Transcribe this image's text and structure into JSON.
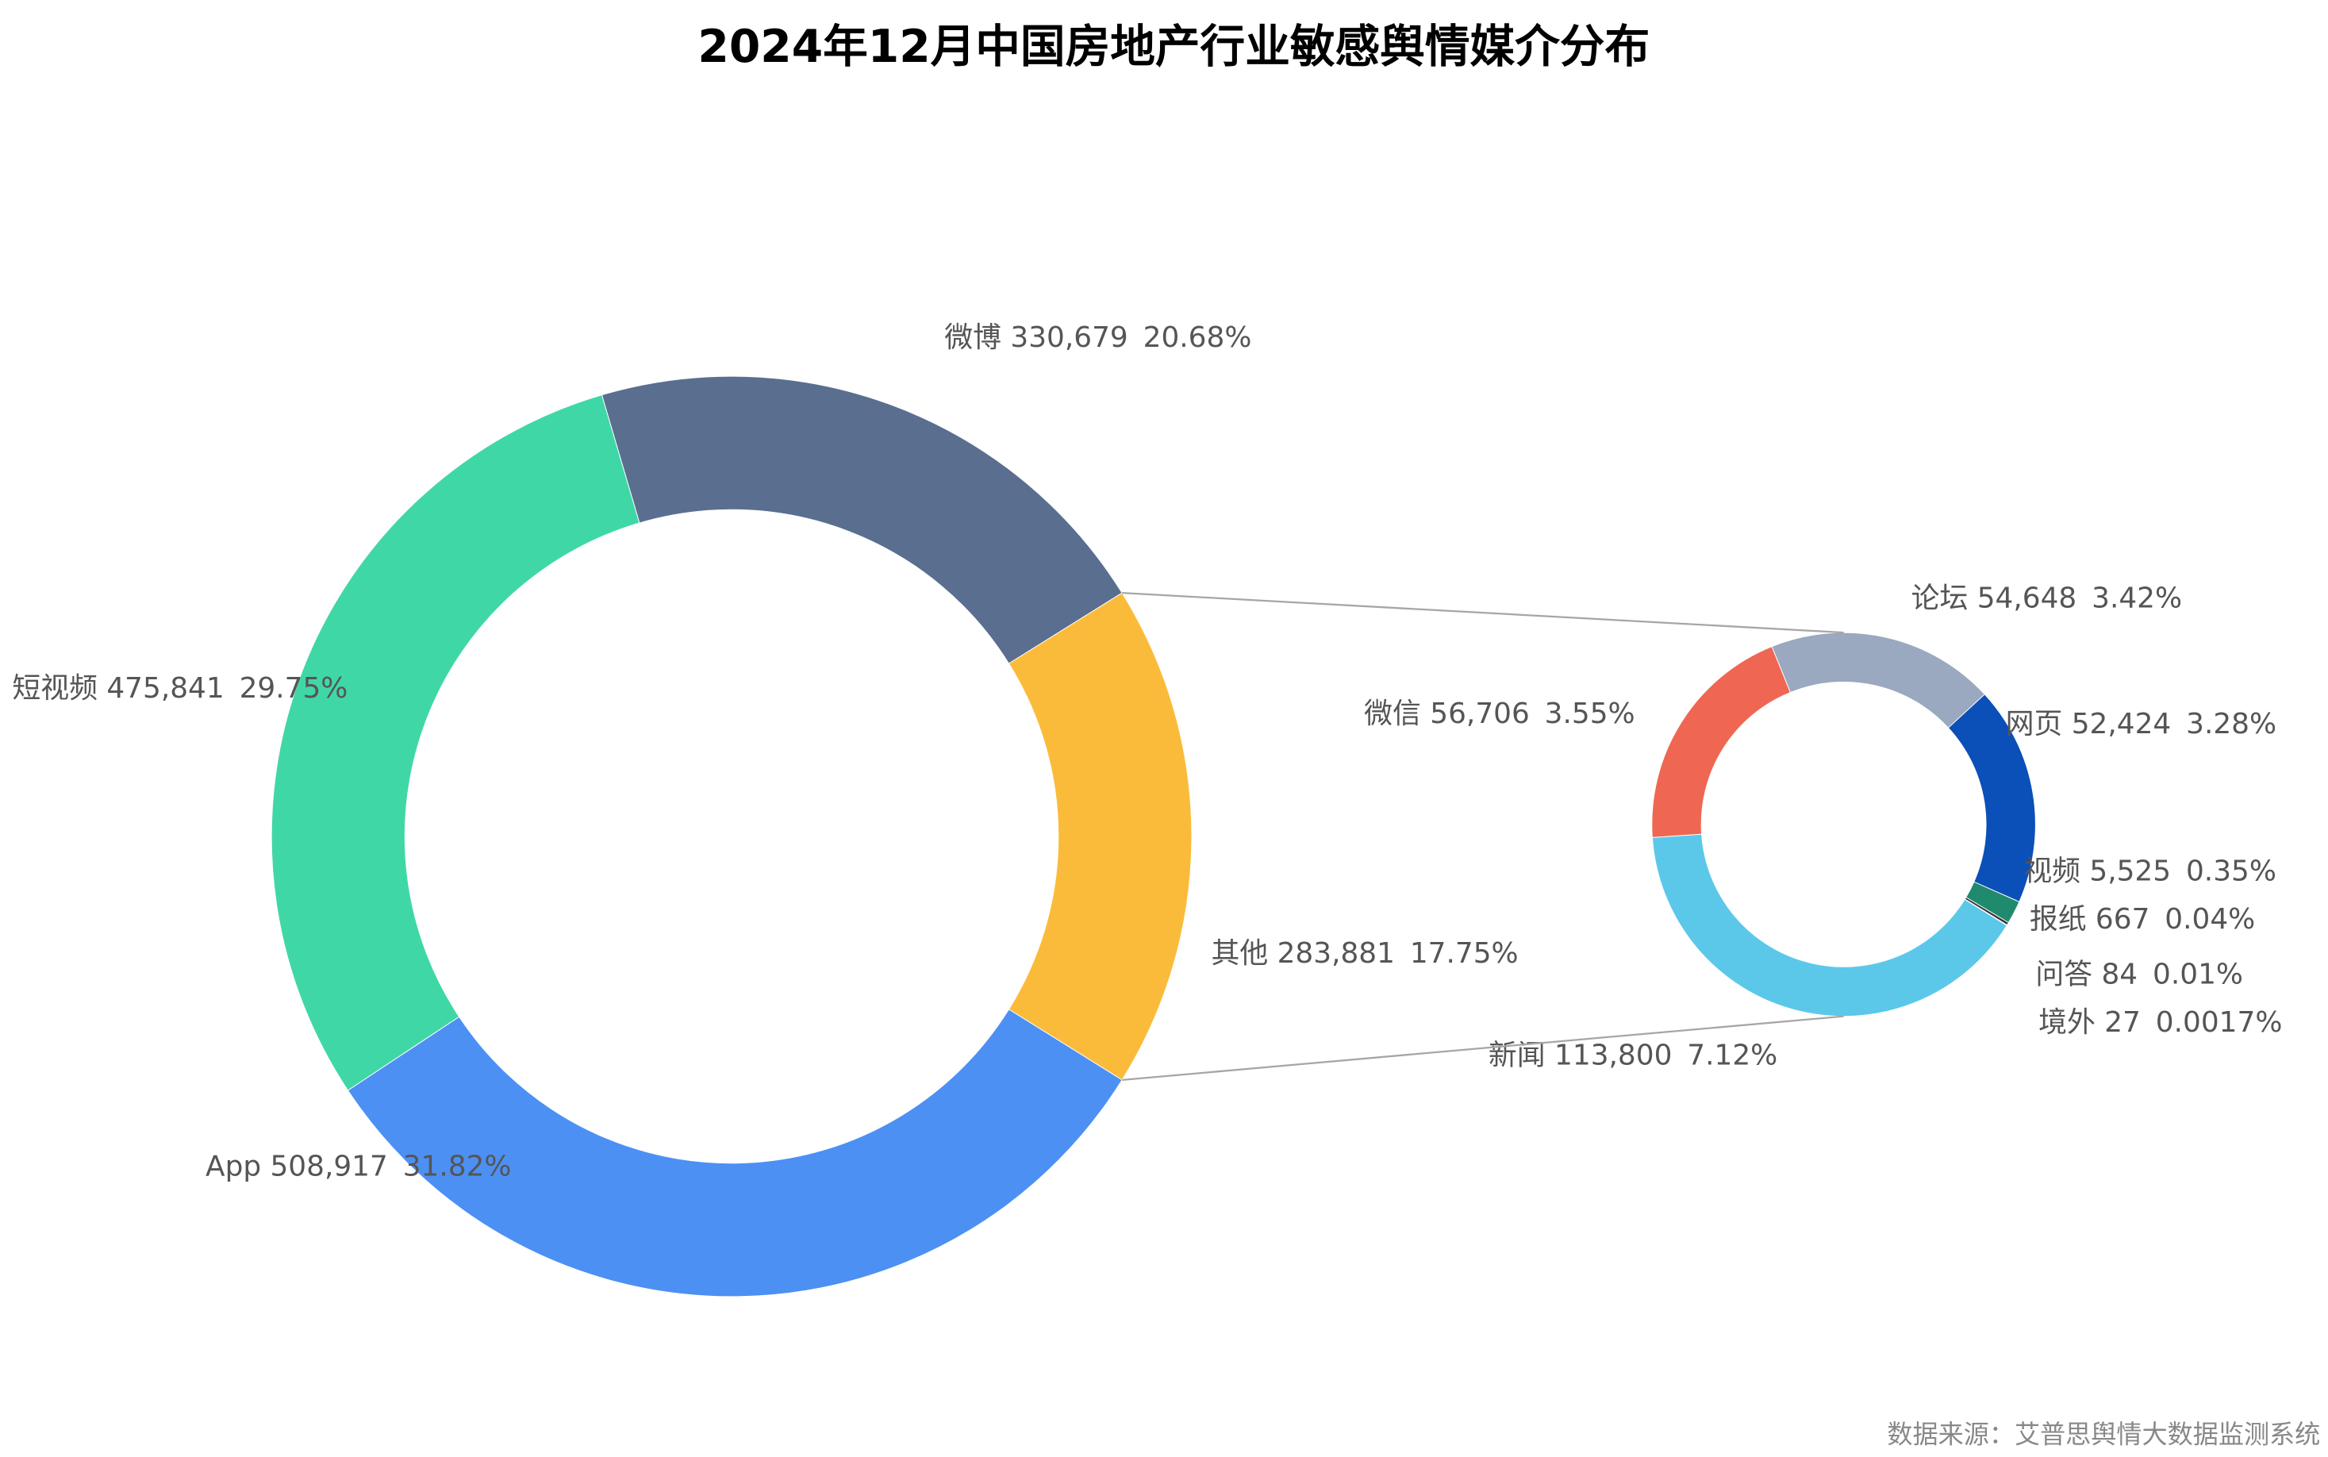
{
  "chart_data": [
    {
      "type": "pie",
      "title": "2024年12月中国房地产行业敏感舆情媒介分布",
      "categories": [
        "微博",
        "其他",
        "App",
        "短视频"
      ],
      "values": [
        330679,
        283881,
        508917,
        475841
      ],
      "value_labels": [
        "330,679",
        "283,881",
        "508,917",
        "475,841"
      ],
      "shares": [
        20.68,
        17.75,
        31.82,
        29.75
      ],
      "share_labels": [
        "20.68%",
        "17.75%",
        "31.82%",
        "29.75%"
      ],
      "colors": [
        "#5a6e8f",
        "#fbbb3a",
        "#4d90f3",
        "#40d7a7"
      ],
      "source": "数据来源：艾普思舆情大数据监测系统"
    },
    {
      "type": "pie",
      "categories": [
        "论坛",
        "网页",
        "视频",
        "报纸",
        "问答",
        "境外",
        "新闻",
        "微信"
      ],
      "values": [
        54648,
        52424,
        5525,
        667,
        84,
        27,
        113800,
        56706
      ],
      "value_labels": [
        "54,648",
        "52,424",
        "5,525",
        "667",
        "84",
        "27",
        "113,800",
        "56,706"
      ],
      "shares": [
        3.42,
        3.28,
        0.35,
        0.04,
        0.01,
        0.0017,
        7.12,
        3.55
      ],
      "share_labels": [
        "3.42%",
        "3.28%",
        "0.35%",
        "0.04%",
        "0.01%",
        "0.0017%",
        "7.12%",
        "3.55%"
      ],
      "colors": [
        "#9aa8c0",
        "#0b4fb8",
        "#1f8a6e",
        "#333333",
        "#888888",
        "#cccccc",
        "#5bc8ea",
        "#ef6752"
      ]
    }
  ]
}
